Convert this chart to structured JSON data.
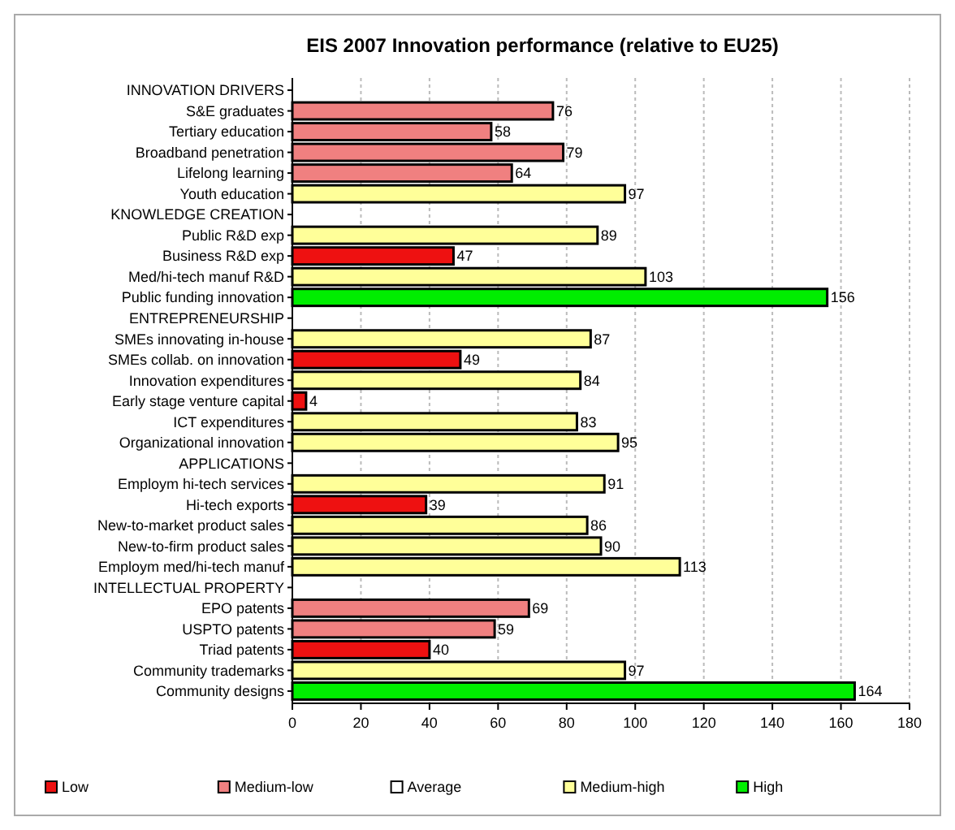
{
  "chart_data": {
    "type": "bar",
    "orientation": "horizontal",
    "title": "EIS 2007 Innovation performance (relative to EU25)",
    "categories": [
      "INNOVATION DRIVERS",
      "S&E graduates",
      "Tertiary education",
      "Broadband penetration",
      "Lifelong learning",
      "Youth education",
      "KNOWLEDGE CREATION",
      "Public R&D exp",
      "Business R&D exp",
      "Med/hi-tech manuf R&D",
      "Public funding innovation",
      "ENTREPRENEURSHIP",
      "SMEs innovating in-house",
      "SMEs collab. on innovation",
      "Innovation expenditures",
      "Early stage venture capital",
      "ICT expenditures",
      "Organizational innovation",
      "APPLICATIONS",
      "Employm hi-tech services",
      "Hi-tech exports",
      "New-to-market product sales",
      "New-to-firm product sales",
      "Employm med/hi-tech manuf",
      "INTELLECTUAL PROPERTY",
      "EPO patents",
      "USPTO patents",
      "Triad patents",
      "Community trademarks",
      "Community designs"
    ],
    "series": [
      {
        "name": "Low",
        "color": "#ee1111",
        "values": [
          null,
          null,
          null,
          null,
          null,
          null,
          null,
          null,
          47,
          null,
          null,
          null,
          null,
          49,
          null,
          4,
          null,
          null,
          null,
          null,
          39,
          null,
          null,
          null,
          null,
          null,
          null,
          40,
          null,
          null
        ]
      },
      {
        "name": "Medium-low",
        "color": "#f08080",
        "values": [
          null,
          76,
          58,
          79,
          64,
          null,
          null,
          null,
          null,
          null,
          null,
          null,
          null,
          null,
          null,
          null,
          null,
          null,
          null,
          null,
          null,
          null,
          null,
          null,
          null,
          69,
          59,
          null,
          null,
          null
        ]
      },
      {
        "name": "Average",
        "color": "#ffffff",
        "values": [
          null,
          null,
          null,
          null,
          null,
          null,
          null,
          null,
          null,
          null,
          null,
          null,
          null,
          null,
          null,
          null,
          null,
          null,
          null,
          null,
          null,
          null,
          null,
          null,
          null,
          null,
          null,
          null,
          null,
          null
        ]
      },
      {
        "name": "Medium-high",
        "color": "#ffff99",
        "values": [
          null,
          null,
          null,
          null,
          null,
          97,
          null,
          89,
          null,
          103,
          null,
          null,
          87,
          null,
          84,
          null,
          83,
          95,
          null,
          91,
          null,
          86,
          90,
          113,
          null,
          null,
          null,
          null,
          97,
          null
        ]
      },
      {
        "name": "High",
        "color": "#00ee00",
        "values": [
          null,
          null,
          null,
          null,
          null,
          null,
          null,
          null,
          null,
          null,
          156,
          null,
          null,
          null,
          null,
          null,
          null,
          null,
          null,
          null,
          null,
          null,
          null,
          null,
          null,
          null,
          null,
          null,
          null,
          164
        ]
      }
    ],
    "xlim": [
      0,
      180
    ],
    "xticks": [
      0,
      20,
      40,
      60,
      80,
      100,
      120,
      140,
      160,
      180
    ],
    "grid": "x",
    "data_labels": true,
    "legend": "bottom"
  }
}
